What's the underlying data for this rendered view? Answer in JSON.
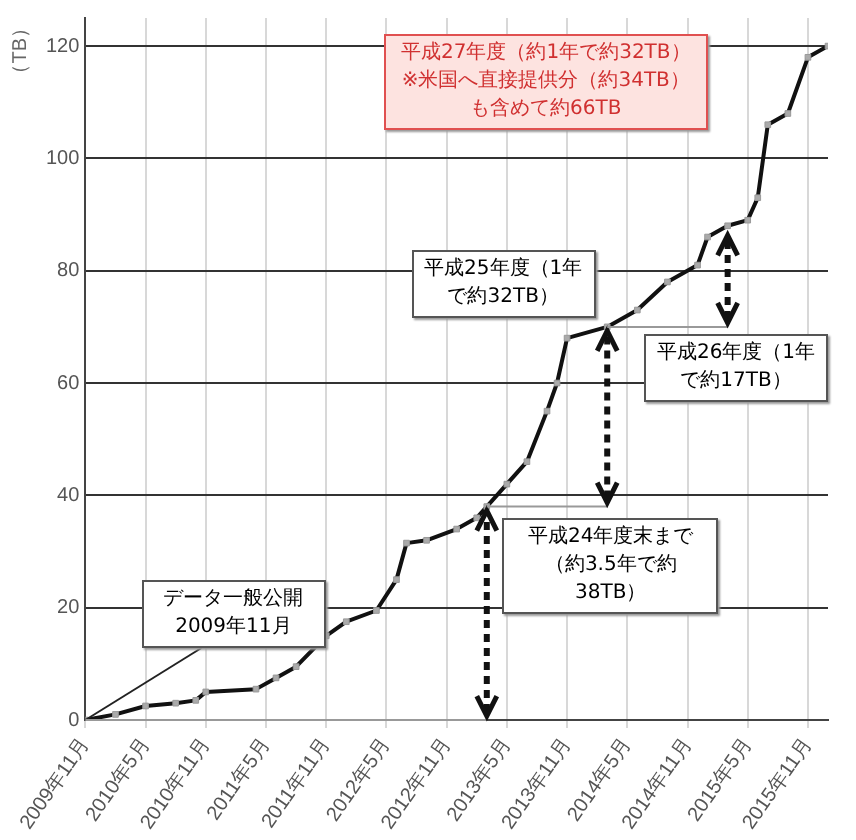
{
  "chart_data": {
    "type": "line",
    "ylabel": "（TB）",
    "x": [
      "2009-11",
      "2010-02",
      "2010-05",
      "2010-08",
      "2010-10",
      "2010-11",
      "2011-04",
      "2011-06",
      "2011-08",
      "2011-11",
      "2012-01",
      "2012-04",
      "2012-06",
      "2012-07",
      "2012-09",
      "2012-12",
      "2013-02",
      "2013-03",
      "2013-05",
      "2013-07",
      "2013-09",
      "2013-10",
      "2013-11",
      "2014-03",
      "2014-06",
      "2014-09",
      "2014-12",
      "2015-01",
      "2015-03",
      "2015-05",
      "2015-06",
      "2015-07",
      "2015-09",
      "2015-11",
      "2016-01"
    ],
    "series": [
      {
        "color": "#111111",
        "values": [
          0,
          1,
          2.5,
          3,
          3.5,
          5,
          5.5,
          7.5,
          9.5,
          15,
          17.5,
          19.5,
          25,
          31.5,
          32,
          34,
          36,
          38,
          42,
          46,
          55,
          60,
          68,
          70,
          73,
          78,
          81,
          86,
          88,
          89,
          93,
          106,
          108,
          118,
          120
        ]
      }
    ],
    "xlim": [
      "2009-11",
      "2016-01"
    ],
    "xticks": [
      {
        "value": "2009-11",
        "label": "2009年11月"
      },
      {
        "value": "2010-05",
        "label": "2010年5月"
      },
      {
        "value": "2010-11",
        "label": "2010年11月"
      },
      {
        "value": "2011-05",
        "label": "2011年5月"
      },
      {
        "value": "2011-11",
        "label": "2011年11月"
      },
      {
        "value": "2012-05",
        "label": "2012年5月"
      },
      {
        "value": "2012-11",
        "label": "2012年11月"
      },
      {
        "value": "2013-05",
        "label": "2013年5月"
      },
      {
        "value": "2013-11",
        "label": "2013年11月"
      },
      {
        "value": "2014-05",
        "label": "2014年5月"
      },
      {
        "value": "2014-11",
        "label": "2014年11月"
      },
      {
        "value": "2015-05",
        "label": "2015年5月"
      },
      {
        "value": "2015-11",
        "label": "2015年11月"
      }
    ],
    "ylim": [
      0,
      125
    ],
    "yticks": [
      0,
      20,
      40,
      60,
      80,
      100,
      120
    ],
    "grid": true,
    "legend": false,
    "marker": "square",
    "line_style": "solid",
    "annotations": [
      {
        "text": "データ一般公開2009年11月",
        "x": "2009-11",
        "y": 0
      },
      {
        "text": "平成24年度末まで（約3.5年で約38TB）",
        "x": "2013-03",
        "y": 38
      },
      {
        "text": "平成25年度（1年で約32TB）",
        "x": "2014-03",
        "y": 70
      },
      {
        "text": "平成26年度（1年で約17TB）",
        "x": "2015-03",
        "y": 87
      },
      "平成27年度（約1年で約32TB）※米国へ直接提供分（約34TB）も含めて約66TB"
    ]
  }
}
